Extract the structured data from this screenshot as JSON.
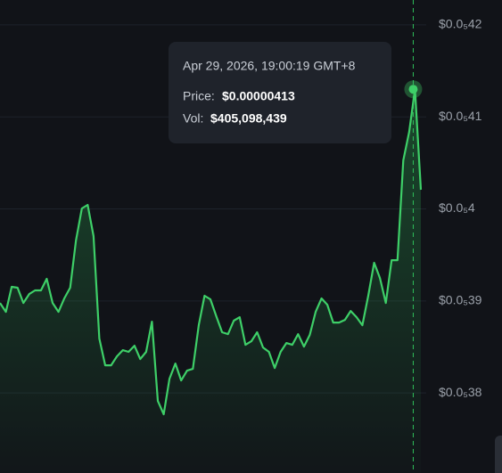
{
  "chart_data": {
    "type": "line",
    "color": "#3ecf68",
    "grid": true,
    "ylim": [
      3.713e-06,
      4.227e-06
    ],
    "yticks": [
      {
        "value": 4.2e-06,
        "label": "$0.0₅42"
      },
      {
        "value": 4.1e-06,
        "label": "$0.0₅41"
      },
      {
        "value": 4e-06,
        "label": "$0.0₅4"
      },
      {
        "value": 3.9e-06,
        "label": "$0.0₅39"
      },
      {
        "value": 3.8e-06,
        "label": "$0.0₅38"
      }
    ],
    "values": [
      3.8978e-06,
      3.8881e-06,
      3.9153e-06,
      3.9143e-06,
      3.8978e-06,
      3.9075e-06,
      3.9114e-06,
      3.9114e-06,
      3.924e-06,
      3.8978e-06,
      3.8881e-06,
      3.9027e-06,
      3.9143e-06,
      3.9656e-06,
      4.0005e-06,
      4.0044e-06,
      3.9705e-06,
      3.8591e-06,
      3.83e-06,
      3.83e-06,
      3.8397e-06,
      3.8465e-06,
      3.8446e-06,
      3.8513e-06,
      3.8368e-06,
      3.8446e-06,
      3.8775e-06,
      3.7913e-06,
      3.7768e-06,
      3.8155e-06,
      3.832e-06,
      3.8136e-06,
      3.8242e-06,
      3.8262e-06,
      3.8736e-06,
      3.9056e-06,
      3.9017e-06,
      3.8833e-06,
      3.8659e-06,
      3.8639e-06,
      3.8785e-06,
      3.8823e-06,
      3.8523e-06,
      3.8562e-06,
      3.8659e-06,
      3.8494e-06,
      3.8446e-06,
      3.8271e-06,
      3.8446e-06,
      3.8542e-06,
      3.8523e-06,
      3.8639e-06,
      3.8504e-06,
      3.863e-06,
      3.8881e-06,
      3.9027e-06,
      3.8959e-06,
      3.8765e-06,
      3.8765e-06,
      3.8794e-06,
      3.8891e-06,
      3.8823e-06,
      3.8736e-06,
      3.9056e-06,
      3.9414e-06,
      3.9249e-06,
      3.8978e-06,
      3.9443e-06,
      3.9443e-06,
      4.0528e-06,
      4.0837e-06,
      4.13e-06,
      4.0208e-06
    ],
    "tooltip": {
      "date": "Apr 29, 2026, 19:00:19 GMT+8",
      "price_label": "Price:",
      "price": "$0.00000413",
      "vol_label": "Vol:",
      "vol": "$405,098,439"
    }
  }
}
